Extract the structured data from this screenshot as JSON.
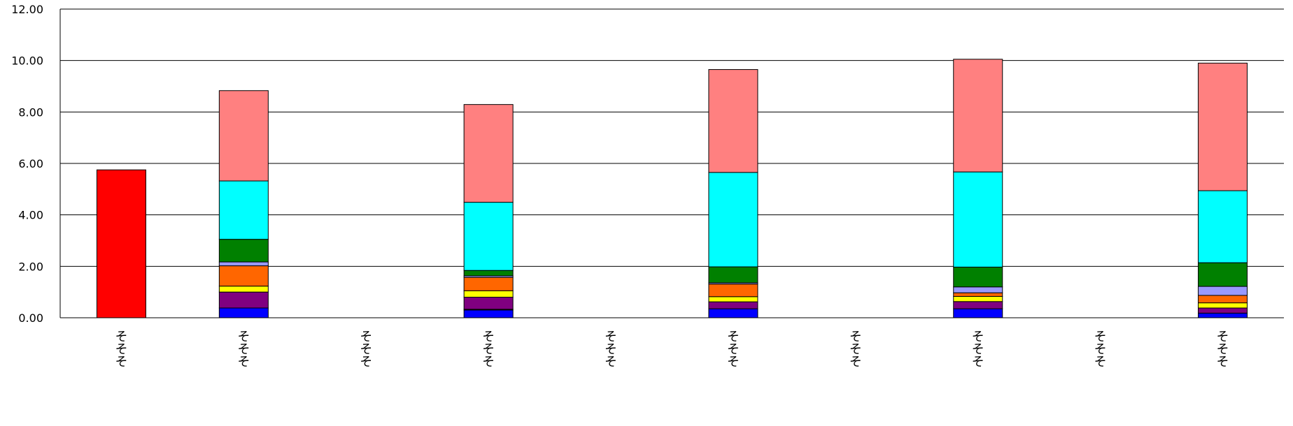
{
  "chart_data": {
    "type": "bar",
    "stacked": true,
    "grid": true,
    "legend": "none",
    "ylim": [
      0,
      12
    ],
    "y_ticks": [
      {
        "value": 0,
        "label": "0.00"
      },
      {
        "value": 2,
        "label": "2.00"
      },
      {
        "value": 4,
        "label": "4.00"
      },
      {
        "value": 6,
        "label": "6.00"
      },
      {
        "value": 8,
        "label": "8.00"
      },
      {
        "value": 10,
        "label": "10.00"
      },
      {
        "value": 12,
        "label": "12.00"
      }
    ],
    "categories": [
      "そそそ",
      "そそそ",
      "そそそ",
      "そそそ",
      "そそそ",
      "そそそ",
      "そそそ",
      "そそそ",
      "そそそ",
      "そそそ"
    ],
    "series": [
      {
        "color": "#FF0000",
        "values": [
          5.75,
          0,
          0,
          0,
          0,
          0,
          0,
          0,
          0,
          0
        ]
      },
      {
        "color": "#0000FF",
        "values": [
          0,
          0.38,
          0,
          0.3,
          0,
          0.35,
          0,
          0.35,
          0,
          0.18
        ]
      },
      {
        "color": "#00AA00",
        "values": [
          0,
          0,
          0,
          0.03,
          0,
          0,
          0,
          0,
          0,
          0
        ]
      },
      {
        "color": "#800080",
        "values": [
          0,
          0.62,
          0,
          0.47,
          0,
          0.27,
          0,
          0.28,
          0,
          0.2
        ]
      },
      {
        "color": "#FFFF00",
        "values": [
          0,
          0.23,
          0,
          0.25,
          0,
          0.2,
          0,
          0.2,
          0,
          0.2
        ]
      },
      {
        "color": "#FF6600",
        "values": [
          0,
          0.79,
          0,
          0.52,
          0,
          0.49,
          0,
          0.14,
          0,
          0.29
        ]
      },
      {
        "color": "#9999FF",
        "values": [
          0,
          0.15,
          0,
          0.06,
          0,
          0.05,
          0,
          0.23,
          0,
          0.35
        ]
      },
      {
        "color": "#008000",
        "values": [
          0,
          0.88,
          0,
          0.21,
          0,
          0.62,
          0,
          0.77,
          0,
          0.92
        ]
      },
      {
        "color": "#00FFFF",
        "values": [
          0,
          2.27,
          0,
          2.65,
          0,
          3.67,
          0,
          3.7,
          0,
          2.8
        ]
      },
      {
        "color": "#FF8080",
        "values": [
          0,
          3.51,
          0,
          3.8,
          0,
          4.0,
          0,
          4.38,
          0,
          4.96
        ]
      }
    ]
  }
}
